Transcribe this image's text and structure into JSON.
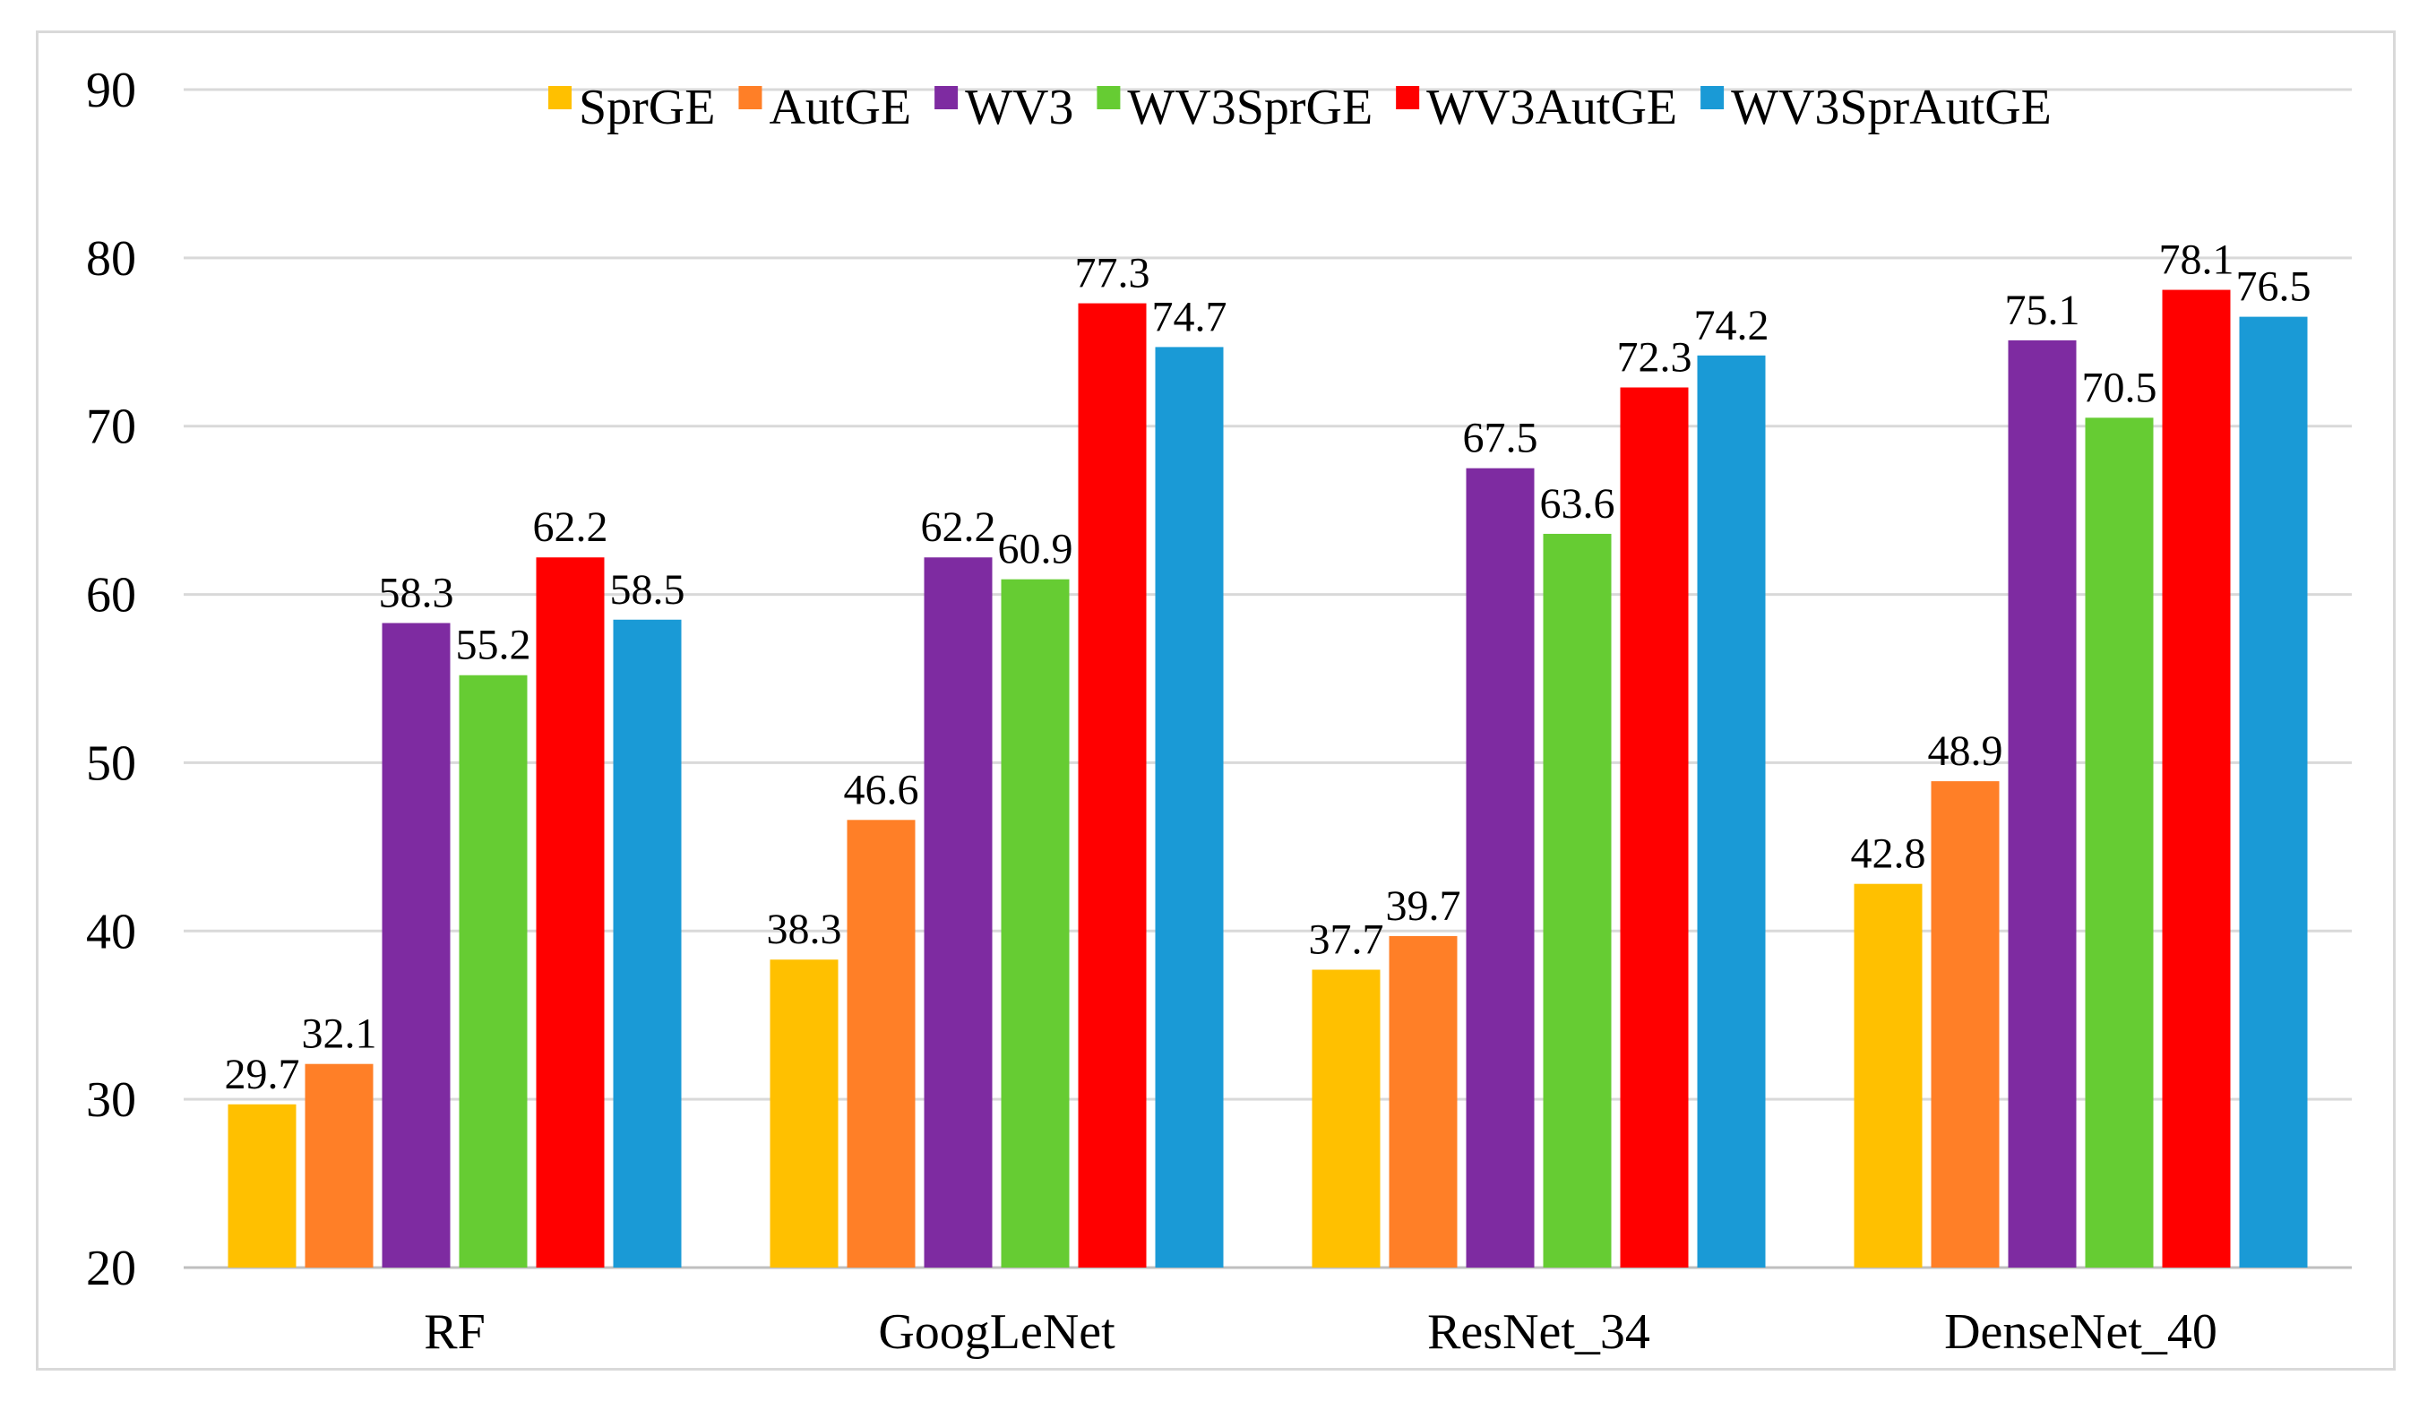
{
  "chart_data": {
    "type": "bar",
    "title": "",
    "xlabel": "",
    "ylabel": "",
    "ylim": [
      20,
      90
    ],
    "yticks": [
      20,
      30,
      40,
      50,
      60,
      70,
      80,
      90
    ],
    "grid": true,
    "legend_position": "top-right",
    "categories": [
      "RF",
      "GoogLeNet",
      "ResNet_34",
      "DenseNet_40"
    ],
    "series": [
      {
        "name": "SprGE",
        "color": "#FFC000",
        "values": [
          29.7,
          38.3,
          37.7,
          42.8
        ]
      },
      {
        "name": "AutGE",
        "color": "#FF7F27",
        "values": [
          32.1,
          46.6,
          39.7,
          48.9
        ]
      },
      {
        "name": "WV3",
        "color": "#7E2BA1",
        "values": [
          58.3,
          62.2,
          67.5,
          75.1
        ]
      },
      {
        "name": "WV3SprGE",
        "color": "#66CC33",
        "values": [
          55.2,
          60.9,
          63.6,
          70.5
        ]
      },
      {
        "name": "WV3AutGE",
        "color": "#FF0000",
        "values": [
          62.2,
          77.3,
          72.3,
          78.1
        ]
      },
      {
        "name": "WV3SprAutGE",
        "color": "#1A9AD6",
        "values": [
          58.5,
          74.7,
          74.2,
          76.5
        ]
      }
    ]
  }
}
